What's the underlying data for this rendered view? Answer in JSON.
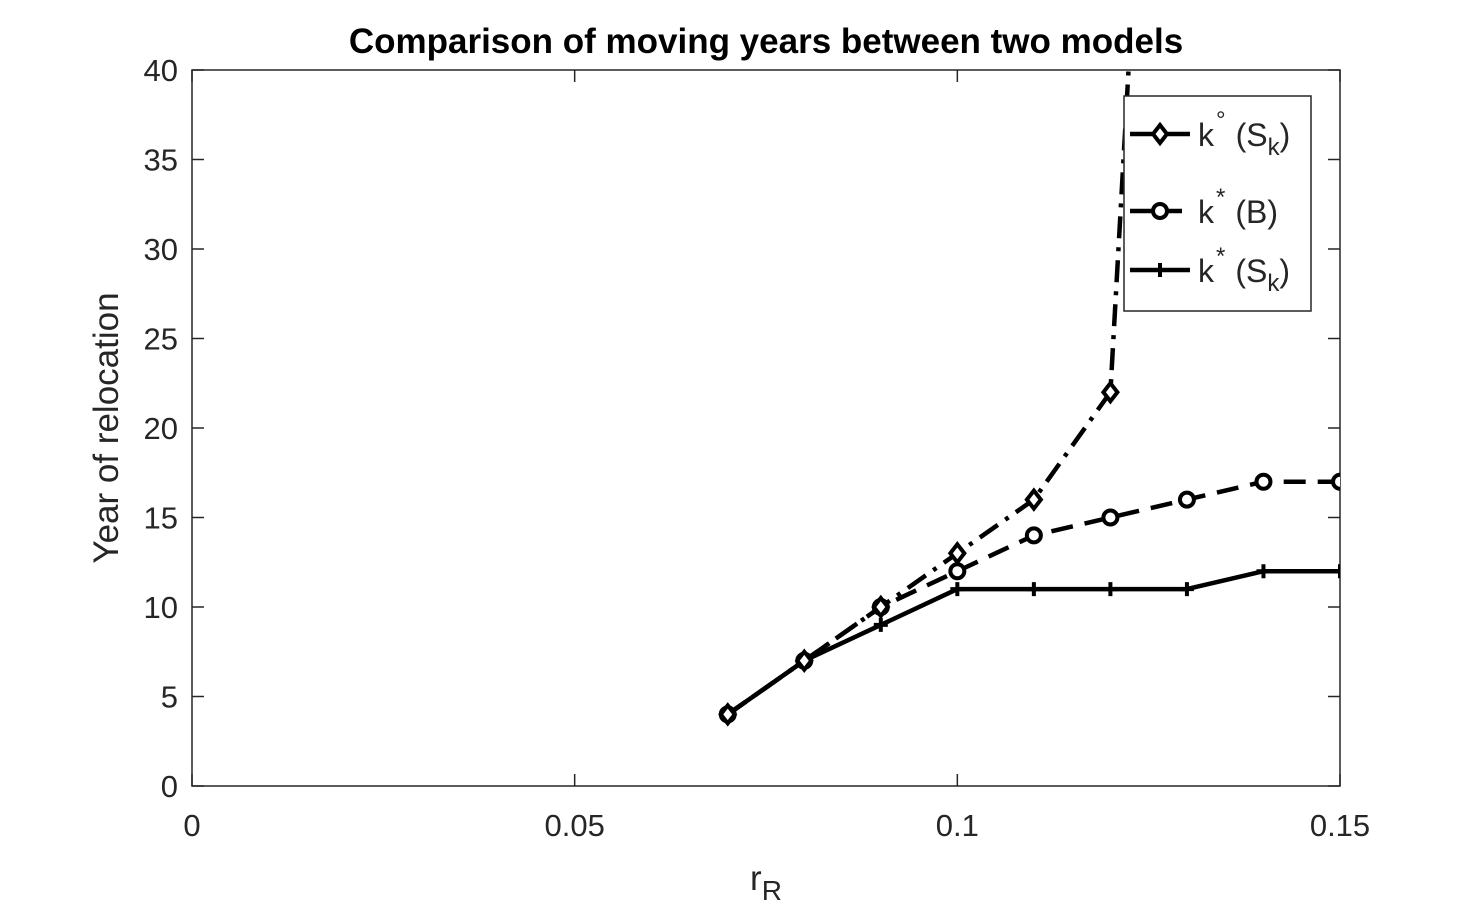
{
  "chart_data": {
    "type": "line",
    "title": "Comparison of moving years between two models",
    "xlabel": {
      "main": "r",
      "sub": "R"
    },
    "ylabel": "Year of relocation",
    "xlim": [
      0,
      0.15
    ],
    "ylim": [
      0,
      40
    ],
    "xticks": [
      0,
      0.05,
      0.1,
      0.15
    ],
    "xtick_labels": [
      "0",
      "0.05",
      "0.1",
      "0.15"
    ],
    "yticks": [
      0,
      5,
      10,
      15,
      20,
      25,
      30,
      35,
      40
    ],
    "ytick_labels": [
      "0",
      "5",
      "10",
      "15",
      "20",
      "25",
      "30",
      "35",
      "40"
    ],
    "grid": false,
    "legend_position": "top-right",
    "series": [
      {
        "name": "k° (Sk)",
        "legend": {
          "base": "k",
          "sup": "°",
          "paren": "(S",
          "sub": "k",
          "close": ")"
        },
        "line_style": "dashdot",
        "marker": "diamond",
        "color": "#000000",
        "x": [
          0.07,
          0.08,
          0.09,
          0.1,
          0.11,
          0.12,
          0.1225
        ],
        "y": [
          4,
          7,
          10,
          13,
          16,
          22,
          41
        ],
        "marker_count": 6
      },
      {
        "name": "k* (B)",
        "legend": {
          "base": "k",
          "sup": "*",
          "paren": "(B)",
          "sub": "",
          "close": ""
        },
        "line_style": "dashed",
        "marker": "circle",
        "color": "#000000",
        "x": [
          0.07,
          0.08,
          0.09,
          0.1,
          0.11,
          0.12,
          0.13,
          0.14,
          0.15
        ],
        "y": [
          4,
          7,
          10,
          12,
          14,
          15,
          16,
          17,
          17
        ],
        "marker_count": 9
      },
      {
        "name": "k* (Sk)",
        "legend": {
          "base": "k",
          "sup": "*",
          "paren": "(S",
          "sub": "k",
          "close": ")"
        },
        "line_style": "solid",
        "marker": "plus",
        "color": "#000000",
        "x": [
          0.07,
          0.08,
          0.09,
          0.1,
          0.11,
          0.12,
          0.13,
          0.14,
          0.15
        ],
        "y": [
          4,
          7,
          9,
          11,
          11,
          11,
          11,
          12,
          12
        ],
        "marker_count": 9
      }
    ]
  }
}
